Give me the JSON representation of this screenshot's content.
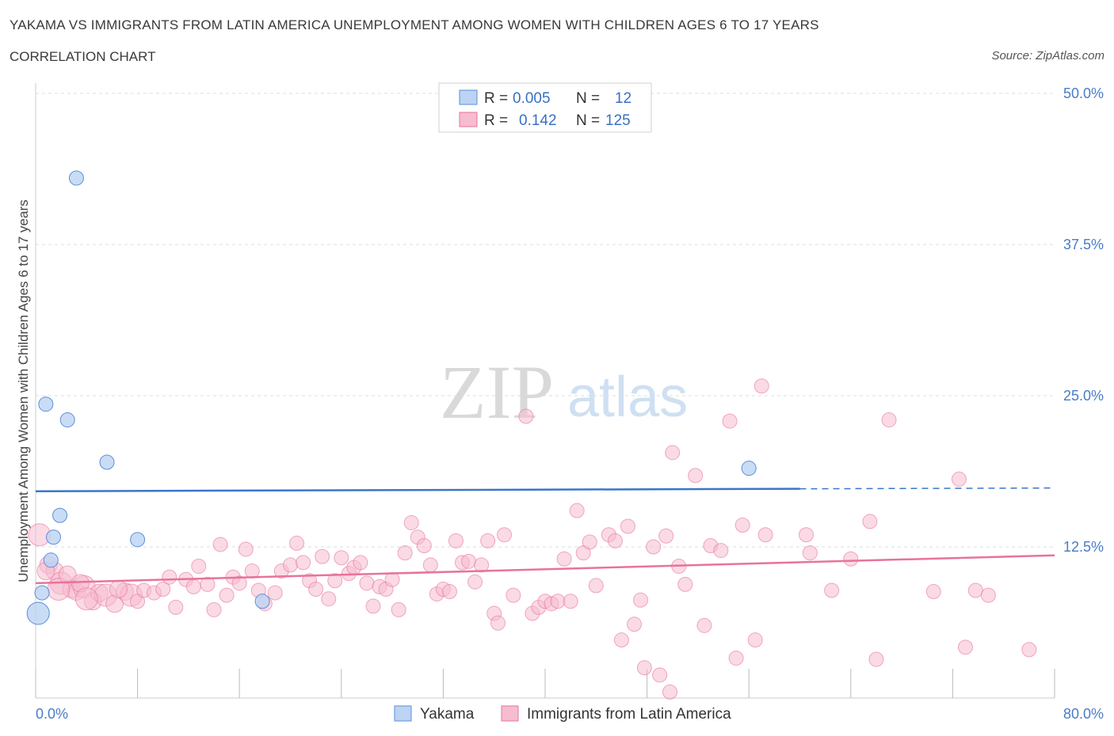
{
  "header": {
    "title": "YAKAMA VS IMMIGRANTS FROM LATIN AMERICA UNEMPLOYMENT AMONG WOMEN WITH CHILDREN AGES 6 TO 17 YEARS",
    "subtitle": "CORRELATION CHART",
    "source": "Source: ZipAtlas.com"
  },
  "watermark": {
    "zip": "ZIP",
    "atlas": "atlas"
  },
  "colors": {
    "yakama": "#5b8fd6",
    "yakama_fill": "#bcd3f3",
    "latin": "#e8739a",
    "latin_fill": "#f6bcd0",
    "axis_text": "#4a7cc7"
  },
  "legend": {
    "row1": {
      "r_label": "R = ",
      "r_value": "0.005",
      "n_label": "N = ",
      "n_value": "12"
    },
    "row2": {
      "r_label": "R = ",
      "r_value": "0.142",
      "n_label": "N = ",
      "n_value": "125"
    }
  },
  "chart_data": {
    "type": "scatter",
    "ylabel": "Unemployment Among Women with Children Ages 6 to 17 years",
    "xlim": [
      0,
      80
    ],
    "ylim": [
      0,
      50
    ],
    "x_tick_labels": [
      "0.0%",
      "80.0%"
    ],
    "y_tick_labels": [
      "12.5%",
      "25.0%",
      "37.5%",
      "50.0%"
    ],
    "y_ticks": [
      12.5,
      25.0,
      37.5,
      50.0
    ],
    "grid": true,
    "legend_position": "top-center",
    "series": [
      {
        "name": "Yakama",
        "trend": {
          "x0": 0,
          "y0": 17.1,
          "x1": 60,
          "y1": 17.3,
          "dash_to": 80
        },
        "points": [
          [
            3.2,
            43
          ],
          [
            0.8,
            24.3
          ],
          [
            2.5,
            23.0
          ],
          [
            5.6,
            19.5
          ],
          [
            1.9,
            15.1
          ],
          [
            1.4,
            13.3
          ],
          [
            8.0,
            13.1
          ],
          [
            1.2,
            11.4
          ],
          [
            0.5,
            8.7
          ],
          [
            17.8,
            8.0
          ],
          [
            0.2,
            7.0
          ],
          [
            56.0,
            19.0
          ]
        ],
        "sizes": [
          9,
          9,
          9,
          9,
          9,
          9,
          9,
          9,
          9,
          9,
          14,
          9
        ]
      },
      {
        "name": "Immigrants from Latin America",
        "trend": {
          "x0": 0,
          "y0": 9.5,
          "x1": 80,
          "y1": 11.8
        },
        "points": [
          [
            0.3,
            13.5
          ],
          [
            1.0,
            11.0
          ],
          [
            1.5,
            10.5
          ],
          [
            2.0,
            9.5
          ],
          [
            2.8,
            9.0
          ],
          [
            3.2,
            8.8
          ],
          [
            3.8,
            9.2
          ],
          [
            4.5,
            8.0
          ],
          [
            5.0,
            8.7
          ],
          [
            5.5,
            8.5
          ],
          [
            6.2,
            7.8
          ],
          [
            7.0,
            8.8
          ],
          [
            7.5,
            8.5
          ],
          [
            8.0,
            8.0
          ],
          [
            8.5,
            8.9
          ],
          [
            9.3,
            8.7
          ],
          [
            10.0,
            9.0
          ],
          [
            10.5,
            10.0
          ],
          [
            11.0,
            7.5
          ],
          [
            11.8,
            9.8
          ],
          [
            12.4,
            9.2
          ],
          [
            12.8,
            10.9
          ],
          [
            13.5,
            9.4
          ],
          [
            14.0,
            7.3
          ],
          [
            14.5,
            12.7
          ],
          [
            15.0,
            8.5
          ],
          [
            15.5,
            10.0
          ],
          [
            16.0,
            9.5
          ],
          [
            16.5,
            12.3
          ],
          [
            17.0,
            10.5
          ],
          [
            17.5,
            8.9
          ],
          [
            18.0,
            7.8
          ],
          [
            18.8,
            8.7
          ],
          [
            19.3,
            10.5
          ],
          [
            20.0,
            11.0
          ],
          [
            20.5,
            12.8
          ],
          [
            21.0,
            11.2
          ],
          [
            21.5,
            9.7
          ],
          [
            22.0,
            9.0
          ],
          [
            22.5,
            11.7
          ],
          [
            23.0,
            8.2
          ],
          [
            23.5,
            9.7
          ],
          [
            24.0,
            11.6
          ],
          [
            24.6,
            10.3
          ],
          [
            25.0,
            10.8
          ],
          [
            25.5,
            11.2
          ],
          [
            26.0,
            9.5
          ],
          [
            26.5,
            7.6
          ],
          [
            27.0,
            9.2
          ],
          [
            27.5,
            9.0
          ],
          [
            28.0,
            9.8
          ],
          [
            28.5,
            7.3
          ],
          [
            29.0,
            12.0
          ],
          [
            29.5,
            14.5
          ],
          [
            30.0,
            13.3
          ],
          [
            30.5,
            12.6
          ],
          [
            31.0,
            11.0
          ],
          [
            31.5,
            8.6
          ],
          [
            32.0,
            9.0
          ],
          [
            32.5,
            8.8
          ],
          [
            33.0,
            13.0
          ],
          [
            33.5,
            11.2
          ],
          [
            34.0,
            11.3
          ],
          [
            34.5,
            9.6
          ],
          [
            35.0,
            11.0
          ],
          [
            35.5,
            13.0
          ],
          [
            36.0,
            7.0
          ],
          [
            36.3,
            6.2
          ],
          [
            36.8,
            13.5
          ],
          [
            37.5,
            8.5
          ],
          [
            38.5,
            23.3
          ],
          [
            39.0,
            7.0
          ],
          [
            39.5,
            7.5
          ],
          [
            40.0,
            8.0
          ],
          [
            40.5,
            7.8
          ],
          [
            41.0,
            8.0
          ],
          [
            41.5,
            11.5
          ],
          [
            42.0,
            8.0
          ],
          [
            42.5,
            15.5
          ],
          [
            43.0,
            12.0
          ],
          [
            43.5,
            12.9
          ],
          [
            44.0,
            9.3
          ],
          [
            45.0,
            13.5
          ],
          [
            45.5,
            13.0
          ],
          [
            46.0,
            4.8
          ],
          [
            46.5,
            14.2
          ],
          [
            47.0,
            6.1
          ],
          [
            47.5,
            8.1
          ],
          [
            47.8,
            2.5
          ],
          [
            48.5,
            12.5
          ],
          [
            49.0,
            1.9
          ],
          [
            49.5,
            13.4
          ],
          [
            49.8,
            0.5
          ],
          [
            50.0,
            20.3
          ],
          [
            50.5,
            10.9
          ],
          [
            51.0,
            9.4
          ],
          [
            51.8,
            18.4
          ],
          [
            52.5,
            6.0
          ],
          [
            53.0,
            12.6
          ],
          [
            53.8,
            12.2
          ],
          [
            54.5,
            22.9
          ],
          [
            55.0,
            3.3
          ],
          [
            55.5,
            14.3
          ],
          [
            56.5,
            4.8
          ],
          [
            57.0,
            25.8
          ],
          [
            57.3,
            13.5
          ],
          [
            60.5,
            13.5
          ],
          [
            60.8,
            12.0
          ],
          [
            62.5,
            8.9
          ],
          [
            64.0,
            11.5
          ],
          [
            65.5,
            14.6
          ],
          [
            66.0,
            3.2
          ],
          [
            67.0,
            23.0
          ],
          [
            70.5,
            8.8
          ],
          [
            72.5,
            18.1
          ],
          [
            73.0,
            4.2
          ],
          [
            73.8,
            8.9
          ],
          [
            74.8,
            8.5
          ],
          [
            78.0,
            4.0
          ],
          [
            0.8,
            10.5
          ],
          [
            1.8,
            9.0
          ],
          [
            2.5,
            10.2
          ],
          [
            3.5,
            9.5
          ],
          [
            4.0,
            8.2
          ],
          [
            6.5,
            9.0
          ]
        ]
      }
    ]
  },
  "bottom_legend": {
    "yakama_label": "Yakama",
    "latin_label": "Immigrants from Latin America"
  }
}
